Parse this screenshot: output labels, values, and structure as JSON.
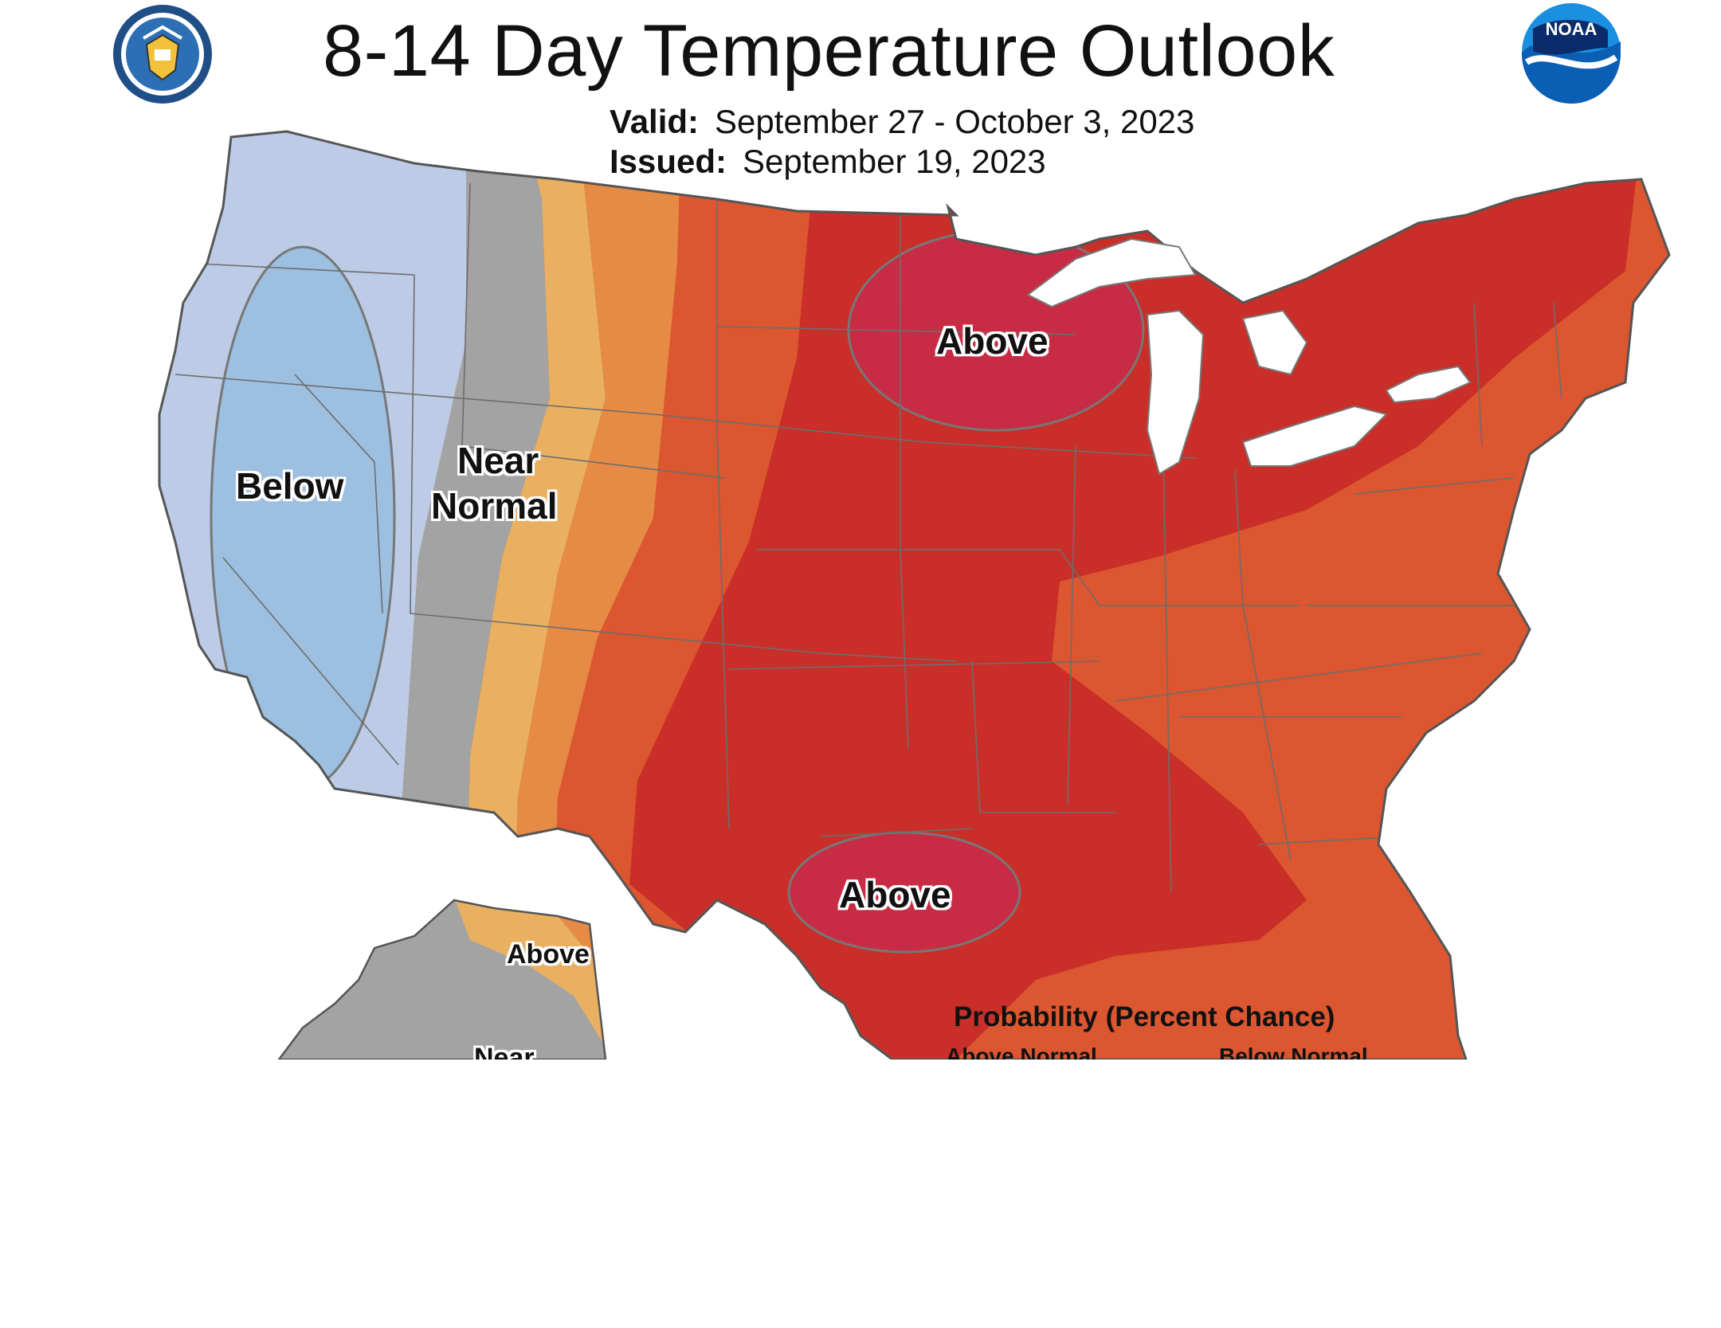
{
  "header": {
    "title": "8-14 Day Temperature Outlook",
    "valid_label": "Valid:",
    "valid_value": "September 27 - October 3, 2023",
    "issued_label": "Issued:",
    "issued_value": "September 19, 2023"
  },
  "logos": {
    "left": "department-of-commerce-seal",
    "right": "noaa-logo",
    "right_text": "NOAA"
  },
  "regions": {
    "west_below": "Below",
    "near_normal_1": "Near",
    "near_normal_2": "Normal",
    "north_above": "Above",
    "texas_above": "Above",
    "alaska_above": "Above",
    "alaska_near": "Near"
  },
  "legend": {
    "title": "Probability (Percent Chance)",
    "above_normal": "Above Normal",
    "below_normal": "Below Normal"
  },
  "colors": {
    "below_strong": "#9dbfe0",
    "below_weak": "#bccbe6",
    "near_normal": "#a3a3a3",
    "above_33": "#e9b062",
    "above_40": "#e58b45",
    "above_50": "#dc5630",
    "above_60": "#c92f28",
    "above_70": "#c82c44"
  }
}
